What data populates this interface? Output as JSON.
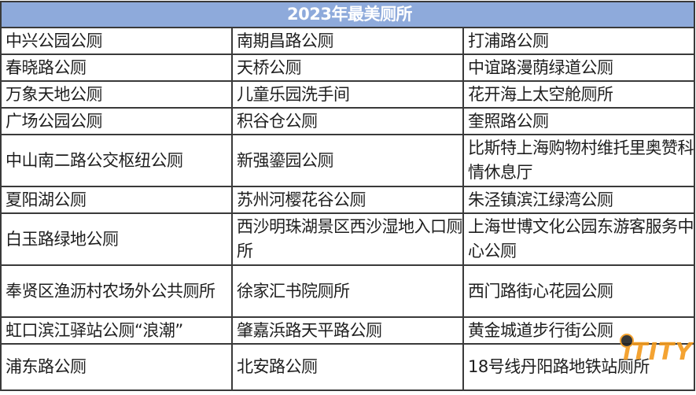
{
  "title": "2023年最美厕所",
  "rows": [
    [
      "中兴公园公厕",
      "南期昌路公厕",
      "打浦路公厕"
    ],
    [
      "春晓路公厕",
      "天桥公厕",
      "中谊路漫荫绿道公厕"
    ],
    [
      "万象天地公厕",
      "儿童乐园洗手间",
      "花开海上太空舱厕所"
    ],
    [
      "广场公园公厕",
      "积谷仓公厕",
      "奎照路公厕"
    ],
    [
      "中山南二路公交枢纽公厕",
      "新强鎏园公厕",
      "比斯特上海购物村维托里奥赞科情休息厅"
    ],
    [
      "夏阳湖公厕",
      "苏州河樱花谷公厕",
      "朱泾镇滨江绿湾公厕"
    ],
    [
      "白玉路绿地公厕",
      "西沙明珠湖景区西沙湿地入口厕所",
      "上海世博文化公园东游客服务中心公厕"
    ],
    [
      "奉贤区渔沥村农场外公共厕所",
      "徐家汇书院厕所",
      "西门路街心花园公厕"
    ],
    [
      "虹口滨江驿站公厕“浪潮”",
      "肇嘉浜路天平路公厕",
      "黄金城道步行街公厕"
    ],
    [
      "浦东路公厕",
      "北安路公厕",
      "18号线丹阳路地铁站厕所"
    ]
  ],
  "watermark": "iTITY",
  "colors": {
    "header_bg": "#8eaadb",
    "watermark": "#f39a1c"
  }
}
